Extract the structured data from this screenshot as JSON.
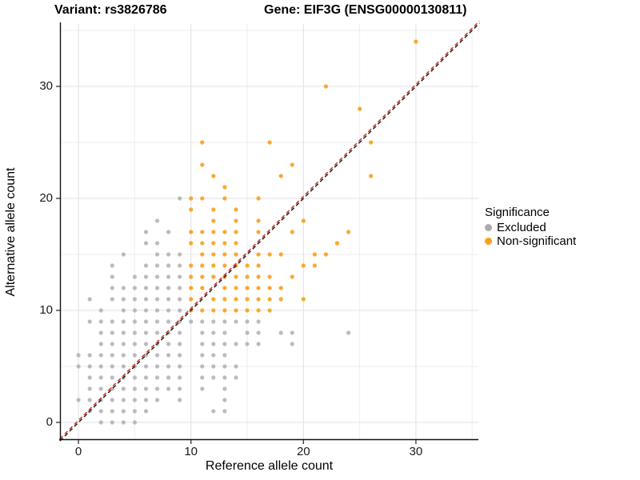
{
  "header": {
    "left_title": "Variant: rs3826786",
    "right_title": "Gene: EIF3G (ENSG00000130811)"
  },
  "axes": {
    "x_label": "Reference allele count",
    "y_label": "Alternative allele count",
    "x_ticks": [
      0,
      10,
      20,
      30
    ],
    "y_ticks": [
      0,
      10,
      20,
      30
    ],
    "x_minor": [
      5,
      15,
      25,
      35
    ],
    "y_minor": [
      5,
      15,
      25,
      35
    ]
  },
  "legend": {
    "title": "Significance",
    "items": [
      {
        "label": "Excluded",
        "color": "#ABABAB"
      },
      {
        "label": "Non-significant",
        "color": "#F9A01B"
      }
    ]
  },
  "chart_data": {
    "type": "scatter",
    "title": "Variant: rs3826786 | Gene: EIF3G (ENSG00000130811)",
    "xlabel": "Reference allele count",
    "ylabel": "Alternative allele count",
    "xlim": [
      0,
      34
    ],
    "ylim": [
      0,
      34
    ],
    "grid": "on",
    "legend_position": "right",
    "identity_line": {
      "type": "y=x",
      "style": "dashed",
      "colors": [
        "#1F1F1F",
        "#D0342C"
      ]
    },
    "style": {
      "point_gray": "#ABABAB",
      "point_orange": "#F9A01B",
      "grid_major": "#E2E2E2",
      "grid_minor": "#EDEDED",
      "axis_line": "#111111",
      "tick_color": "#333333"
    },
    "series": [
      {
        "name": "Excluded",
        "color": "#ABABAB",
        "opacity": 0.8,
        "points": [
          [
            0,
            2
          ],
          [
            0,
            5
          ],
          [
            0,
            6
          ],
          [
            1,
            1
          ],
          [
            1,
            2
          ],
          [
            1,
            3
          ],
          [
            1,
            4
          ],
          [
            1,
            5
          ],
          [
            1,
            6
          ],
          [
            1,
            9
          ],
          [
            1,
            11
          ],
          [
            2,
            0
          ],
          [
            2,
            1
          ],
          [
            2,
            2
          ],
          [
            2,
            3
          ],
          [
            2,
            4
          ],
          [
            2,
            5
          ],
          [
            2,
            6
          ],
          [
            2,
            7
          ],
          [
            2,
            8
          ],
          [
            2,
            9
          ],
          [
            2,
            10
          ],
          [
            3,
            0
          ],
          [
            3,
            1
          ],
          [
            3,
            2
          ],
          [
            3,
            3
          ],
          [
            3,
            4
          ],
          [
            3,
            5
          ],
          [
            3,
            6
          ],
          [
            3,
            7
          ],
          [
            3,
            8
          ],
          [
            3,
            9
          ],
          [
            3,
            11
          ],
          [
            3,
            12
          ],
          [
            3,
            13
          ],
          [
            3,
            14
          ],
          [
            4,
            0
          ],
          [
            4,
            1
          ],
          [
            4,
            2
          ],
          [
            4,
            3
          ],
          [
            4,
            4
          ],
          [
            4,
            5
          ],
          [
            4,
            6
          ],
          [
            4,
            7
          ],
          [
            4,
            8
          ],
          [
            4,
            9
          ],
          [
            4,
            10
          ],
          [
            4,
            11
          ],
          [
            4,
            12
          ],
          [
            4,
            15
          ],
          [
            5,
            0
          ],
          [
            5,
            1
          ],
          [
            5,
            2
          ],
          [
            5,
            3
          ],
          [
            5,
            4
          ],
          [
            5,
            5
          ],
          [
            5,
            6
          ],
          [
            5,
            7
          ],
          [
            5,
            8
          ],
          [
            5,
            9
          ],
          [
            5,
            10
          ],
          [
            5,
            11
          ],
          [
            5,
            12
          ],
          [
            5,
            13
          ],
          [
            6,
            1
          ],
          [
            6,
            2
          ],
          [
            6,
            3
          ],
          [
            6,
            4
          ],
          [
            6,
            5
          ],
          [
            6,
            6
          ],
          [
            6,
            7
          ],
          [
            6,
            8
          ],
          [
            6,
            9
          ],
          [
            6,
            10
          ],
          [
            6,
            11
          ],
          [
            6,
            12
          ],
          [
            6,
            13
          ],
          [
            6,
            14
          ],
          [
            6,
            16
          ],
          [
            6,
            17
          ],
          [
            7,
            2
          ],
          [
            7,
            3
          ],
          [
            7,
            4
          ],
          [
            7,
            5
          ],
          [
            7,
            6
          ],
          [
            7,
            7
          ],
          [
            7,
            8
          ],
          [
            7,
            9
          ],
          [
            7,
            10
          ],
          [
            7,
            11
          ],
          [
            7,
            12
          ],
          [
            7,
            13
          ],
          [
            7,
            14
          ],
          [
            7,
            15
          ],
          [
            7,
            16
          ],
          [
            7,
            18
          ],
          [
            8,
            3
          ],
          [
            8,
            4
          ],
          [
            8,
            5
          ],
          [
            8,
            6
          ],
          [
            8,
            7
          ],
          [
            8,
            8
          ],
          [
            8,
            9
          ],
          [
            8,
            10
          ],
          [
            8,
            11
          ],
          [
            8,
            12
          ],
          [
            8,
            13
          ],
          [
            8,
            14
          ],
          [
            8,
            15
          ],
          [
            8,
            17
          ],
          [
            9,
            2
          ],
          [
            9,
            3
          ],
          [
            9,
            4
          ],
          [
            9,
            5
          ],
          [
            9,
            6
          ],
          [
            9,
            7
          ],
          [
            9,
            8
          ],
          [
            9,
            9
          ],
          [
            9,
            10
          ],
          [
            9,
            11
          ],
          [
            9,
            12
          ],
          [
            9,
            13
          ],
          [
            9,
            14
          ],
          [
            9,
            15
          ],
          [
            9,
            20
          ],
          [
            10,
            9
          ],
          [
            11,
            3
          ],
          [
            11,
            4
          ],
          [
            11,
            5
          ],
          [
            11,
            6
          ],
          [
            11,
            7
          ],
          [
            11,
            8
          ],
          [
            11,
            9
          ],
          [
            12,
            1
          ],
          [
            12,
            4
          ],
          [
            12,
            5
          ],
          [
            12,
            6
          ],
          [
            12,
            7
          ],
          [
            12,
            8
          ],
          [
            12,
            9
          ],
          [
            13,
            1
          ],
          [
            13,
            2
          ],
          [
            13,
            3
          ],
          [
            13,
            4
          ],
          [
            13,
            5
          ],
          [
            13,
            6
          ],
          [
            13,
            7
          ],
          [
            13,
            8
          ],
          [
            13,
            9
          ],
          [
            14,
            4
          ],
          [
            14,
            5
          ],
          [
            14,
            7
          ],
          [
            14,
            9
          ],
          [
            15,
            7
          ],
          [
            15,
            8
          ],
          [
            15,
            9
          ],
          [
            16,
            7
          ],
          [
            16,
            8
          ],
          [
            16,
            9
          ],
          [
            18,
            8
          ],
          [
            19,
            7
          ],
          [
            19,
            8
          ],
          [
            24,
            8
          ]
        ]
      },
      {
        "name": "Non-significant",
        "color": "#F9A01B",
        "opacity": 0.9,
        "points": [
          [
            10,
            10
          ],
          [
            10,
            11
          ],
          [
            10,
            12
          ],
          [
            10,
            13
          ],
          [
            10,
            14
          ],
          [
            10,
            16
          ],
          [
            10,
            17
          ],
          [
            10,
            19
          ],
          [
            10,
            20
          ],
          [
            11,
            10
          ],
          [
            11,
            12
          ],
          [
            11,
            13
          ],
          [
            11,
            14
          ],
          [
            11,
            15
          ],
          [
            11,
            16
          ],
          [
            11,
            17
          ],
          [
            11,
            20
          ],
          [
            11,
            23
          ],
          [
            11,
            25
          ],
          [
            12,
            10
          ],
          [
            12,
            11
          ],
          [
            12,
            13
          ],
          [
            12,
            14
          ],
          [
            12,
            15
          ],
          [
            12,
            16
          ],
          [
            12,
            17
          ],
          [
            12,
            18
          ],
          [
            12,
            19
          ],
          [
            12,
            22
          ],
          [
            13,
            10
          ],
          [
            13,
            11
          ],
          [
            13,
            12
          ],
          [
            13,
            13
          ],
          [
            13,
            14
          ],
          [
            13,
            15
          ],
          [
            13,
            16
          ],
          [
            13,
            17
          ],
          [
            13,
            20
          ],
          [
            13,
            21
          ],
          [
            14,
            10
          ],
          [
            14,
            11
          ],
          [
            14,
            12
          ],
          [
            14,
            13
          ],
          [
            14,
            14
          ],
          [
            14,
            15
          ],
          [
            14,
            16
          ],
          [
            14,
            17
          ],
          [
            14,
            18
          ],
          [
            14,
            19
          ],
          [
            15,
            10
          ],
          [
            15,
            11
          ],
          [
            15,
            12
          ],
          [
            15,
            13
          ],
          [
            15,
            14
          ],
          [
            16,
            10
          ],
          [
            16,
            11
          ],
          [
            16,
            12
          ],
          [
            16,
            13
          ],
          [
            16,
            14
          ],
          [
            16,
            15
          ],
          [
            16,
            17
          ],
          [
            16,
            18
          ],
          [
            16,
            20
          ],
          [
            17,
            10
          ],
          [
            17,
            11
          ],
          [
            17,
            12
          ],
          [
            17,
            13
          ],
          [
            17,
            15
          ],
          [
            17,
            25
          ],
          [
            18,
            11
          ],
          [
            18,
            12
          ],
          [
            18,
            15
          ],
          [
            18,
            22
          ],
          [
            19,
            13
          ],
          [
            19,
            17
          ],
          [
            19,
            23
          ],
          [
            20,
            11
          ],
          [
            20,
            14
          ],
          [
            20,
            18
          ],
          [
            21,
            14
          ],
          [
            21,
            15
          ],
          [
            22,
            15
          ],
          [
            22,
            30
          ],
          [
            23,
            16
          ],
          [
            24,
            17
          ],
          [
            25,
            28
          ],
          [
            26,
            22
          ],
          [
            26,
            25
          ],
          [
            30,
            34
          ]
        ]
      }
    ]
  }
}
